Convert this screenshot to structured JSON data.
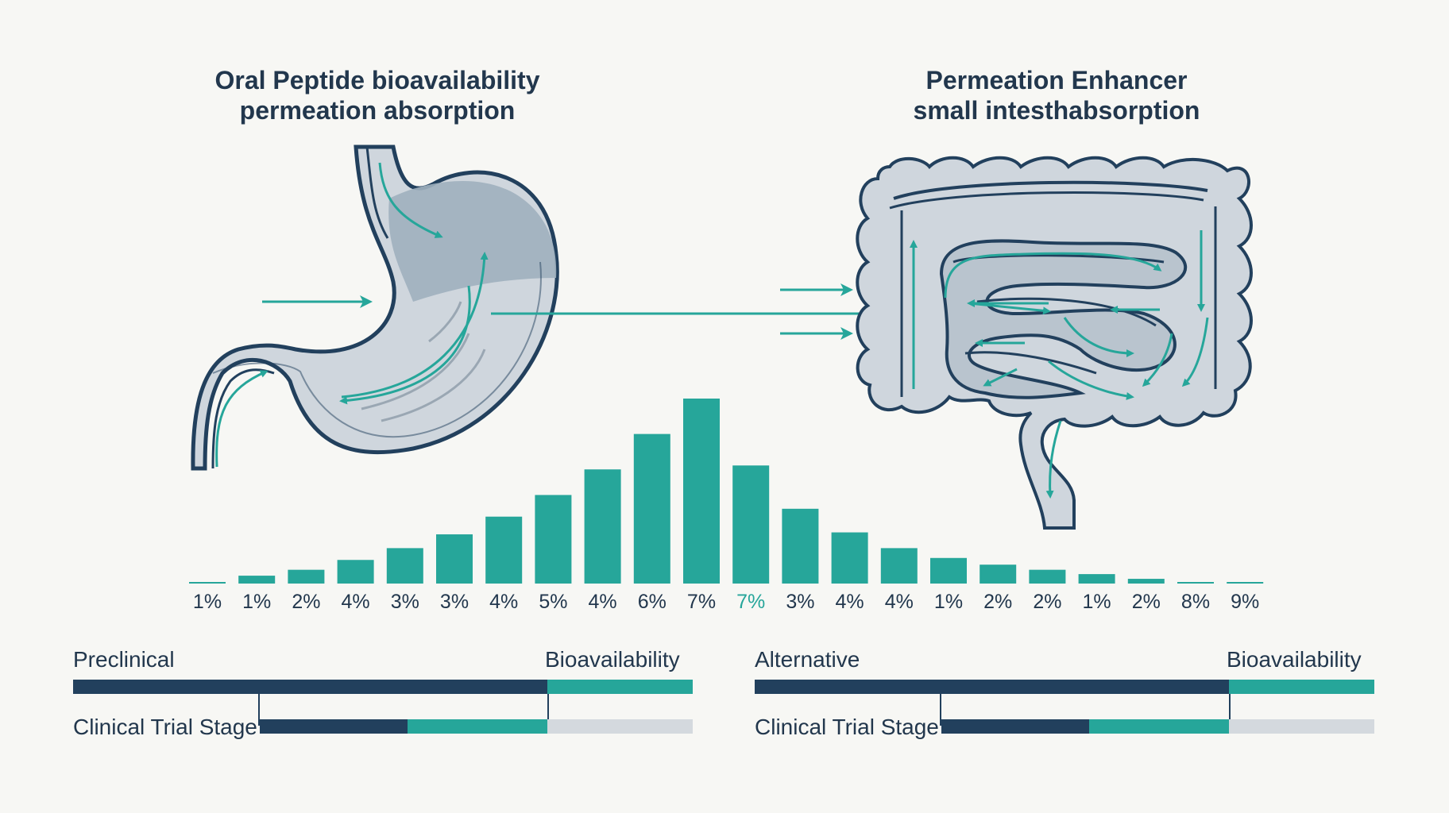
{
  "titles": {
    "left_line1": "Oral Peptide bioavailability",
    "left_line2": "permeation absorption",
    "right_line1": "Permeation Enhancer",
    "right_line2": "small intesthabsorption"
  },
  "chart_data": {
    "type": "bar",
    "categories": [
      "1%",
      "1%",
      "2%",
      "4%",
      "3%",
      "3%",
      "4%",
      "5%",
      "4%",
      "6%",
      "7%",
      "7%",
      "3%",
      "4%",
      "4%",
      "1%",
      "2%",
      "2%",
      "1%",
      "2%",
      "8%",
      "9%"
    ],
    "values": [
      0.3,
      2.0,
      3.5,
      6.0,
      9.0,
      12.5,
      17.0,
      22.5,
      29.0,
      38.0,
      47.0,
      30.0,
      19.0,
      13.0,
      9.0,
      6.5,
      4.8,
      3.5,
      2.4,
      1.2,
      0.4,
      0.2
    ],
    "highlight_index": 11,
    "colors": {
      "bar": "#26a69a",
      "highlight_label": "#26a59a",
      "label": "#22374d"
    }
  },
  "progress_left": {
    "label_top_left": "Preclinical",
    "label_top_right": "Bioavailability",
    "label_bottom": "Clinical Trial Stage",
    "top_dark_fraction": 0.766,
    "bottom_dark_fraction": 0.35,
    "bottom_teal_fraction": 0.33
  },
  "progress_right": {
    "label_top_left": "Alternative",
    "label_top_right": "Bioavailability",
    "label_bottom": "Clinical Trial Stage",
    "top_dark_fraction": 0.766,
    "bottom_dark_fraction": 0.35,
    "bottom_teal_fraction": 0.33
  },
  "colors": {
    "navy": "#22405d",
    "teal": "#26a69a",
    "organ_fill": "#cfd6dd",
    "organ_shade": "#9fb0be",
    "background": "#f7f7f4"
  }
}
